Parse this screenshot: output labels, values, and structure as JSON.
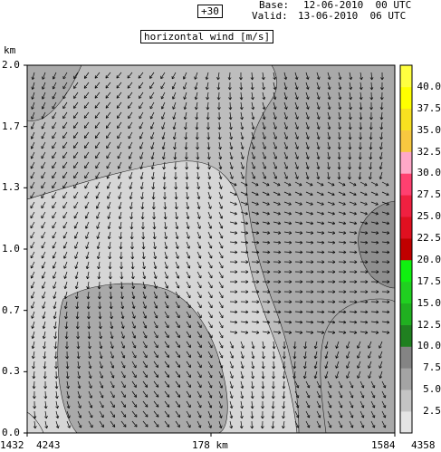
{
  "header": {
    "lead_time": "+30",
    "base_label": "Base:",
    "base_value": "12-06-2010  00 UTC",
    "valid_label": "Valid:",
    "valid_value": "13-06-2010  06 UTC"
  },
  "chart_data": {
    "type": "heatmap",
    "title": "horizontal wind [m/s]",
    "ylabel": "km",
    "ylim": [
      0.0,
      2.0
    ],
    "yticks": [
      "0.0",
      "0.3",
      "0.7",
      "1.0",
      "1.3",
      "1.7",
      "2.0"
    ],
    "xticks": {
      "left_outer": "1432",
      "left_inner": "4243",
      "center": "178 km",
      "right_inner": "1584",
      "right_outer": "4358"
    },
    "colorbar": {
      "levels": [
        "2.5",
        "5.0",
        "7.5",
        "10.0",
        "12.5",
        "15.0",
        "17.5",
        "20.0",
        "22.5",
        "25.0",
        "27.5",
        "30.0",
        "32.5",
        "35.0",
        "37.5",
        "40.0"
      ],
      "colors": [
        "#e4e4e4",
        "#c4c4c4",
        "#a4a4a4",
        "#848484",
        "#208020",
        "#20b020",
        "#20d020",
        "#10f010",
        "#c00000",
        "#e01020",
        "#f02040",
        "#ff4070",
        "#ffa8c8",
        "#f8c840",
        "#f8e020",
        "#ffff00",
        "#ffff40"
      ]
    },
    "contour_fill": {
      "light": "#d6d6d6",
      "mid": "#bdbdbd",
      "dark": "#a9a9a9",
      "darker": "#8f8f8f"
    }
  }
}
